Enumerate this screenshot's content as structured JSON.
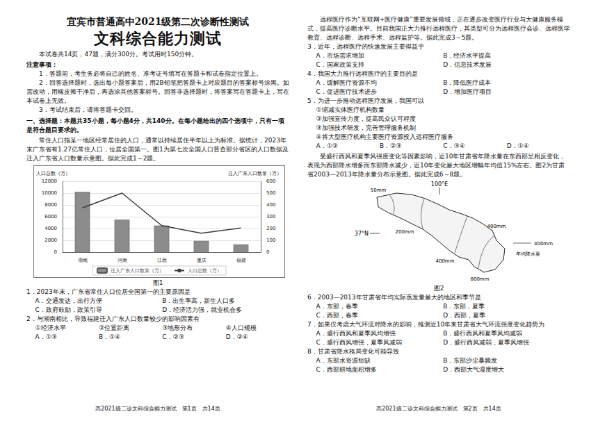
{
  "left_page": {
    "header": "宜宾市普通高中2021级第二次诊断性测试",
    "title": "文科综合能力测试",
    "info": "本试卷共14页，47题，满分300分。考试用时150分钟。",
    "notes_title": "注意事项：",
    "notes": [
      "1．答题前，考生务必将自己的姓名、准考证号填写在答题卡和试卷指定位置上。",
      "2．回答选择题时，选出每小题答案后，用2B铅笔把答题卡上对应题目的答案标号涂黑。如需改动，用橡皮擦干净后，再选涂其他答案标号。回答非选择题时，将答案写在答题卡上，写在本试卷上无效。",
      "3．考试结束后，请将答题卡交回。"
    ],
    "section": "一、选择题：本题共35小题，每小题4分，共140分。在每小题给出的四个选项中，只有一项是符合题目要求的。",
    "intro": "常住人口指某一地区经常居住的人口，通常以持续居住半年以上为标准。据统计，2023年末广东省有1.27亿常住人口，位居全国第一。图1为第七次全国人口普查部分省区的人口数据及迁入广东省人口数量示意图。据此完成1～2题。",
    "questions": [
      {
        "stem": "1．2023年末，广东省常住人口位居全国第一的主要原因是",
        "options": [
          "A．交通发达，出行方便",
          "B．出生率高，新生人口多",
          "C．政府鼓励，政策引导",
          "D．经济活力强，就业机会多"
        ]
      },
      {
        "stem": "2．与湖南相比，导致福建迁入广东人口数量较少的影响因素有",
        "items": [
          "①经济水平",
          "②位置距离",
          "③地形分布",
          "④人口规模"
        ],
        "options": [
          "A．①③",
          "B．①④",
          "C．②③",
          "D．②④"
        ]
      }
    ],
    "footer": "高2021级二诊文科综合能力测试　第1页　共14页"
  },
  "chart_data": {
    "type": "bar",
    "title": "图1",
    "y_label": "人口总数（万）",
    "y2_label": "迁入广东人口数量（万）",
    "categories": [
      "湖南",
      "河南",
      "江西",
      "重庆",
      "福建"
    ],
    "series": [
      {
        "name": "迁入广东人口数量（万）",
        "type": "bar",
        "axis": "y2",
        "color": "#8c8c8c",
        "values": [
          510,
          275,
          225,
          95,
          65
        ]
      },
      {
        "name": "人口总数（万）",
        "type": "line",
        "color": "#3a3a3a",
        "marker": "none",
        "values": [
          7500,
          10000,
          4500,
          3200,
          4100
        ]
      }
    ],
    "ylim": [
      0,
      12000
    ],
    "yticks": [
      0,
      2000,
      4000,
      6000,
      8000,
      10000,
      12000
    ],
    "y2lim": [
      0,
      600
    ],
    "y2ticks": [
      0,
      100,
      200,
      300,
      400,
      500,
      600
    ],
    "grid": true,
    "legend": "bottom"
  },
  "right_page": {
    "intro1": "远程医疗作为“互联网+医疗健康”重要发展领域，正在逐步改变医疗行业与大健康服务模式，提高医疗诊断水平。目前我国正大力推行远程医疗，其类型可分为远程医疗会诊、远程医学教育、远程诊断、远程手术、远程监护等。据此完成3～5题。",
    "questions1": [
      {
        "stem": "3．近年，远程医疗的快速发展主要得益于",
        "options": [
          "A．市场需求增加",
          "B．经济水平提高",
          "C．国家政策支持",
          "D．信息技术发展"
        ]
      },
      {
        "stem": "4．我国大力推行远程医疗的主要目的是",
        "options": [
          "A．缓解医疗资源不均",
          "B．降低医疗成本",
          "C．促进医疗技术进步",
          "D．增加医疗项目"
        ]
      },
      {
        "stem": "5．为进一步推动远程医疗发展，我国可以",
        "items": [
          "①缩减实体医疗机构数量",
          "②加强宣传力度，提高民众认可程度",
          "③加强技术研发，完善管理服务机制",
          "④将大型医疗机构主要医疗资源投入远程医疗服务"
        ],
        "options": [
          "A．①②",
          "B．②③",
          "C．③④",
          "D．①④"
        ]
      }
    ],
    "intro2": "受盛行西风和夏季风强度变化等因素影响，近10年甘肃省年降水量在东西部呈相反变化，表现为西部降水增多而东部降水减少，近10年变化最大地区增幅年均值15%左右。图2为甘肃省2003—2013年降水量分布示意图。据此完成6～8题。",
    "figure2": {
      "longitude_label": "100°E",
      "latitude_label": "37°N",
      "isoline_labels": [
        "50mm",
        "200mm",
        "400mm",
        "400mm",
        "800mm"
      ],
      "legend_label": "400mm",
      "legend_text": "年均降水量",
      "caption": "图2"
    },
    "questions2": [
      {
        "stem": "6．2003—2013年甘肃省年均实际蒸发量最大的地区和季节是",
        "options": [
          "A．东部，春季",
          "B．东部，夏季",
          "C．西部，春季",
          "D．西部，夏季"
        ]
      },
      {
        "stem": "7．如果仅考虑大气环流对降水的影响，推测近10年来甘肃省大气环流强度变化趋势为",
        "options": [
          "A．盛行西风和夏季风均增强",
          "B．盛行西风和夏季风均减弱",
          "C．盛行西风增强，夏季风减弱",
          "D．盛行西风减弱，夏季风增强"
        ]
      },
      {
        "stem": "8．甘肃省降水格局变化可能导致",
        "options": [
          "A．东部水资源短缺",
          "B．东部沙尘暴频发",
          "C．西部耕地面积增多",
          "D．西部大气湿度增大"
        ]
      }
    ],
    "footer": "高2021级二诊文科综合能力测试　第2页　共14页"
  }
}
